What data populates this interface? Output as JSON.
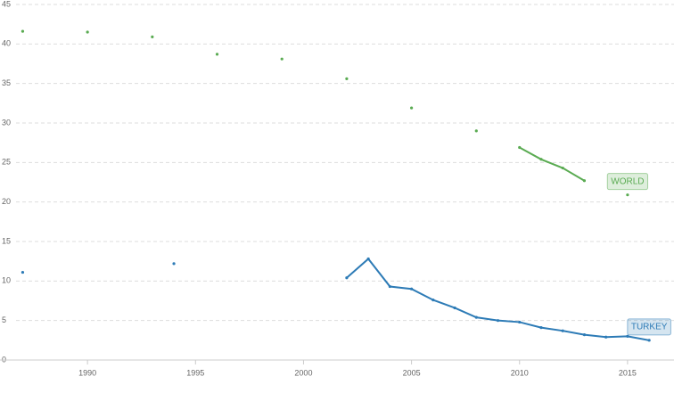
{
  "chart_data": {
    "type": "line",
    "x": [
      1987,
      1988,
      1989,
      1990,
      1991,
      1992,
      1993,
      1994,
      1995,
      1996,
      1997,
      1998,
      1999,
      2000,
      2001,
      2002,
      2003,
      2004,
      2005,
      2006,
      2007,
      2008,
      2009,
      2010,
      2011,
      2012,
      2013,
      2014,
      2015,
      2016
    ],
    "series": [
      {
        "name": "WORLD",
        "color": "#5aab52",
        "values": [
          41.6,
          null,
          null,
          41.5,
          null,
          null,
          40.9,
          null,
          null,
          38.7,
          null,
          null,
          38.1,
          null,
          null,
          35.6,
          null,
          null,
          31.9,
          null,
          null,
          29.0,
          null,
          26.9,
          25.4,
          24.3,
          22.7,
          null,
          20.9,
          null
        ]
      },
      {
        "name": "TURKEY",
        "color": "#2d7bb6",
        "values": [
          11.1,
          null,
          null,
          null,
          null,
          null,
          null,
          12.2,
          null,
          null,
          null,
          null,
          null,
          null,
          null,
          10.4,
          12.8,
          9.3,
          9.0,
          7.6,
          6.6,
          5.4,
          5.0,
          4.8,
          4.1,
          3.7,
          3.2,
          2.9,
          3.0,
          2.5
        ]
      }
    ],
    "xlim": [
      1985.95,
      2017.15
    ],
    "xticks": [
      1990,
      1995,
      2000,
      2005,
      2010,
      2015
    ],
    "ylim": [
      0,
      45
    ],
    "yticks": [
      0,
      5,
      10,
      15,
      20,
      25,
      30,
      35,
      40,
      45
    ],
    "grid": true
  }
}
